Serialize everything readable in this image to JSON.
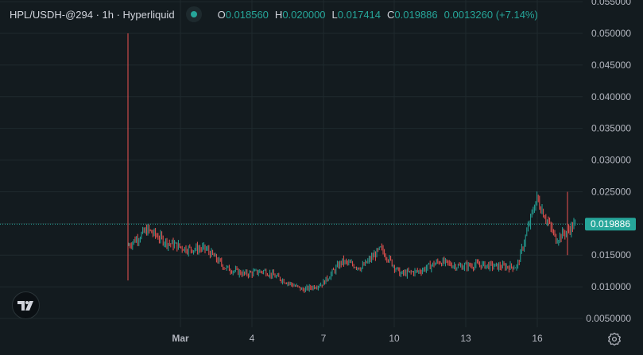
{
  "legend": {
    "symbol": "HPL/USDH-@294 · 1h · Hyperliquid",
    "o_key": "O",
    "o_val": "0.018560",
    "h_key": "H",
    "h_val": "0.020000",
    "l_key": "L",
    "l_val": "0.017414",
    "c_key": "C",
    "c_val": "0.019886",
    "change": "0.0013260 (+7.14%)"
  },
  "colors": {
    "up": "#26a69a",
    "down": "#ef5350",
    "background": "#131b1f",
    "grid": "#1f2a2e",
    "price_label": "#26a69a"
  },
  "icons": {
    "logo": "tradingview-logo",
    "settings": "gear-icon"
  },
  "chart_data": {
    "type": "candlestick",
    "y_ticks": [
      "0.0050000",
      "0.010000",
      "0.015000",
      "0.020000",
      "0.025000",
      "0.030000",
      "0.035000",
      "0.040000",
      "0.045000",
      "0.050000",
      "0.055000"
    ],
    "x_ticks": [
      "Mar",
      "4",
      "7",
      "10",
      "13",
      "16"
    ],
    "ylim": [
      0.0035,
      0.056
    ],
    "last_price": 0.019886,
    "last_price_label": "0.019886",
    "x": [
      "Feb 26 12:00",
      "Feb 27 00:00",
      "Feb 28 00:00",
      "Mar 1",
      "Mar 2",
      "Mar 3",
      "Mar 4",
      "Mar 5",
      "Mar 6",
      "Mar 7",
      "Mar 8 00:00",
      "Mar 8 12:00",
      "Mar 9",
      "Mar 10",
      "Mar 11",
      "Mar 12",
      "Mar 13",
      "Mar 14",
      "Mar 15",
      "Mar 16",
      "Mar 17 00:00",
      "Mar 17 06:00",
      "Mar 17 12:00",
      "Mar 17 18:00"
    ],
    "close": [
      0.0165,
      0.019,
      0.017,
      0.016,
      0.016,
      0.013,
      0.012,
      0.0125,
      0.011,
      0.0095,
      0.0105,
      0.014,
      0.013,
      0.016,
      0.012,
      0.0125,
      0.014,
      0.0132,
      0.0135,
      0.0132,
      0.0132,
      0.024,
      0.0175,
      0.0199
    ],
    "spike": {
      "x": "Feb 26 12:00",
      "high": 0.05,
      "low": 0.011
    }
  }
}
